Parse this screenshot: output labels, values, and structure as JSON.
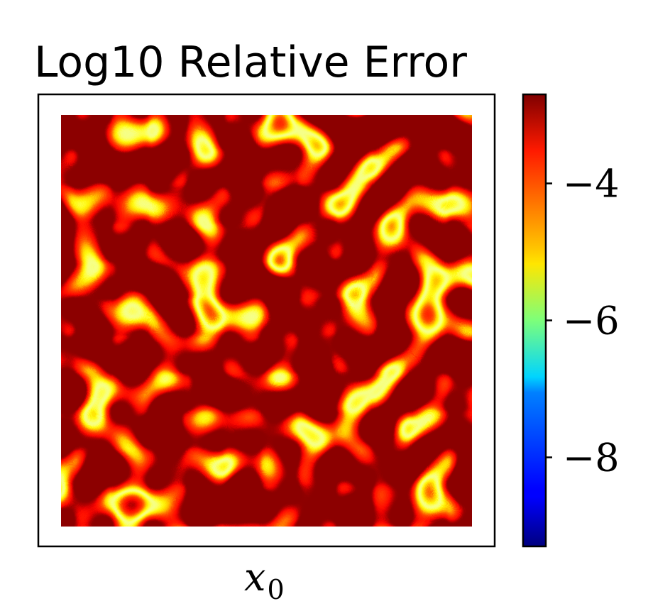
{
  "chart_data": {
    "type": "heatmap",
    "title": "Log10 Relative Error",
    "xlabel": "x",
    "xlabel_sub": "0",
    "ylabel": "",
    "grid": false,
    "colormap": "jet",
    "colorbar": {
      "range": [
        -9.3,
        -2.7
      ],
      "ticks": [
        -4,
        -6,
        -8
      ],
      "tick_labels": [
        "−4",
        "−6",
        "−8"
      ]
    },
    "field": {
      "description_free": true,
      "typical_value": -3.0,
      "min_visible_value": -5.5
    }
  }
}
